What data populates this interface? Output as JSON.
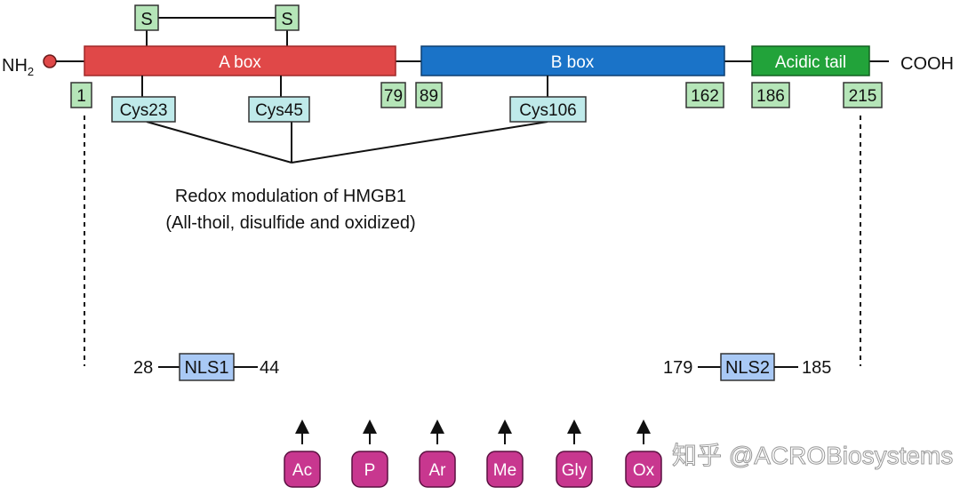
{
  "termini": {
    "n": "NH",
    "n_sub": "2",
    "c": "COOH"
  },
  "domains": [
    {
      "label": "A box",
      "color": "#e04848"
    },
    {
      "label": "B box",
      "color": "#1a73c8"
    },
    {
      "label": "Acidic tail",
      "color": "#22a33a"
    }
  ],
  "disulfide": {
    "s1": "S",
    "s2": "S"
  },
  "positions": [
    "1",
    "79",
    "89",
    "162",
    "186",
    "215"
  ],
  "cysteines": [
    "Cys23",
    "Cys45",
    "Cys106"
  ],
  "redox": {
    "line1": "Redox modulation of HMGB1",
    "line2": "(All-thoil, disulfide and oxidized)"
  },
  "nls": [
    {
      "start": "28",
      "label": "NLS1",
      "end": "44"
    },
    {
      "start": "179",
      "label": "NLS2",
      "end": "185"
    }
  ],
  "ptms": [
    "Ac",
    "P",
    "Ar",
    "Me",
    "Gly",
    "Ox"
  ],
  "watermark": "知乎 @ACROBiosystems"
}
